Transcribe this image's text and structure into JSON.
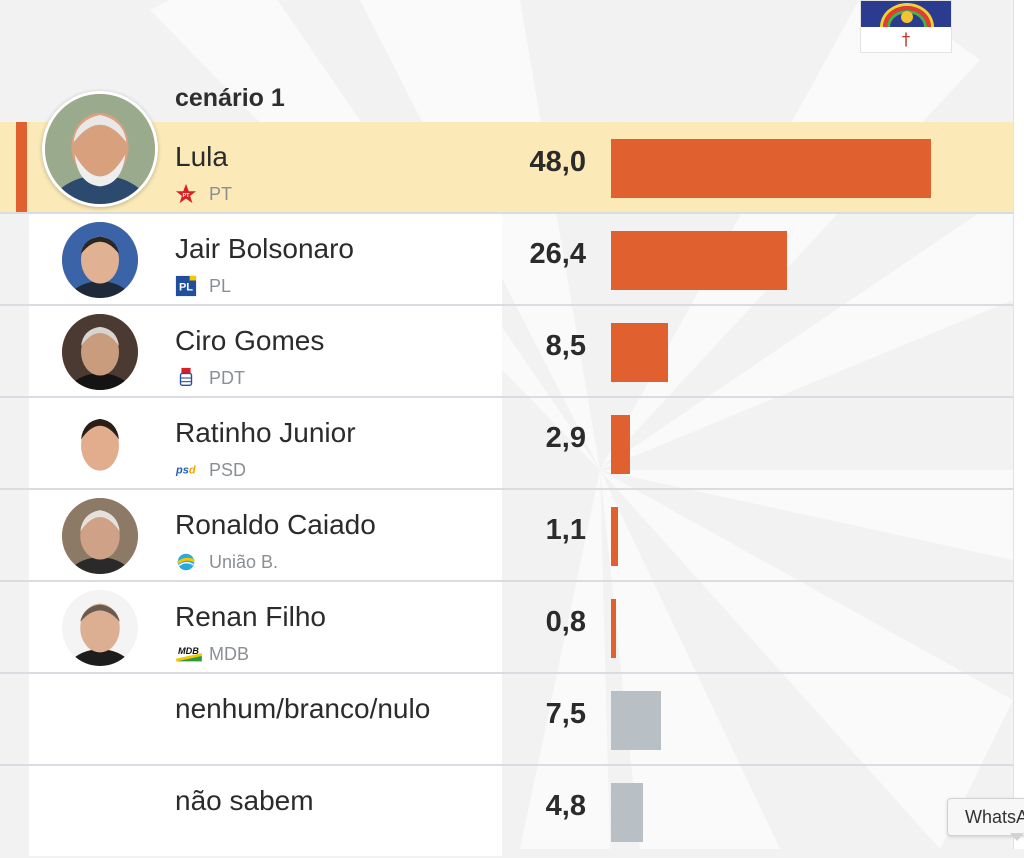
{
  "header": {
    "scenario_title": "cenário 1"
  },
  "flag": {
    "name": "pernambuco-flag"
  },
  "chart_data": {
    "type": "bar",
    "orientation": "horizontal",
    "title": "cenário 1",
    "value_format": "comma-decimal",
    "xlim": [
      0,
      60
    ],
    "candidates": [
      {
        "name": "Lula",
        "party": "PT",
        "value": 48.0,
        "label": "48,0",
        "color": "#e0602f",
        "highlighted": true,
        "icon": "pt-star-icon"
      },
      {
        "name": "Jair Bolsonaro",
        "party": "PL",
        "value": 26.4,
        "label": "26,4",
        "color": "#e0602f",
        "highlighted": false,
        "icon": "pl-logo-icon"
      },
      {
        "name": "Ciro Gomes",
        "party": "PDT",
        "value": 8.5,
        "label": "8,5",
        "color": "#e0602f",
        "highlighted": false,
        "icon": "pdt-fist-icon"
      },
      {
        "name": "Ratinho Junior",
        "party": "PSD",
        "value": 2.9,
        "label": "2,9",
        "color": "#e0602f",
        "highlighted": false,
        "icon": "psd-logo-icon"
      },
      {
        "name": "Ronaldo Caiado",
        "party": "União B.",
        "value": 1.1,
        "label": "1,1",
        "color": "#e0602f",
        "highlighted": false,
        "icon": "uniao-brasil-logo-icon"
      },
      {
        "name": "Renan Filho",
        "party": "MDB",
        "value": 0.8,
        "label": "0,8",
        "color": "#e0602f",
        "highlighted": false,
        "icon": "mdb-logo-icon"
      },
      {
        "name": "nenhum/branco/nulo",
        "party": "",
        "value": 7.5,
        "label": "7,5",
        "color": "#b8c0c6",
        "highlighted": false,
        "icon": ""
      },
      {
        "name": "não sabem",
        "party": "",
        "value": 4.8,
        "label": "4,8",
        "color": "#b8c0c6",
        "highlighted": false,
        "icon": ""
      }
    ]
  },
  "tooltip": {
    "text": "WhatsApp"
  }
}
